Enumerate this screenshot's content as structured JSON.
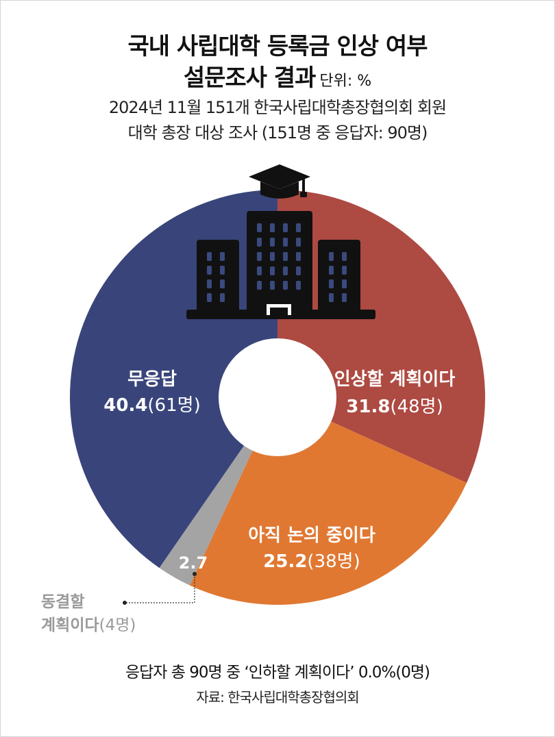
{
  "header": {
    "title_line1": "국내 사립대학 등록금 인상 여부",
    "title_line2": "설문조사 결과",
    "unit": "단위: %",
    "subtitle_line1": "2024년 11월 151개 한국사립대학총장협의회 회원",
    "subtitle_line2": "대학 총장 대상 조사 (151명 중 응답자: 90명)"
  },
  "chart_data": {
    "type": "pie",
    "donut": true,
    "start": "top, clockwise",
    "slices": [
      {
        "label": "인상할 계획이다",
        "value": 31.8,
        "count": "(48명)",
        "color": "#ad4a42"
      },
      {
        "label": "아직 논의 중이다",
        "value": 25.2,
        "count": "(38명)",
        "color": "#e07832"
      },
      {
        "label": "동결할 계획이다",
        "label_line1": "동결할",
        "label_line2": "계획이다",
        "value": 2.7,
        "count": "(4명)",
        "color": "#a4a4a4"
      },
      {
        "label": "무응답",
        "value": 40.4,
        "count": "(61명)",
        "color": "#39457a"
      }
    ],
    "icon": "university-building-icon"
  },
  "footer": {
    "note": "응답자 총 90명 중 ‘인하할 계획이다’ 0.0%(0명)",
    "source": "자료: 한국사립대학총장협의회"
  }
}
